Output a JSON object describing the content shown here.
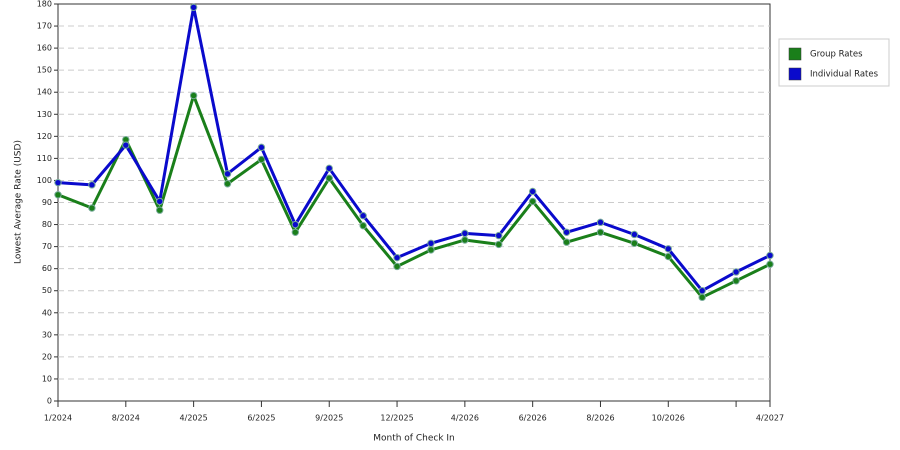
{
  "chart_data": {
    "type": "line",
    "x_label": "Month of Check In",
    "y_label": "Lowest Average Rate (USD)",
    "categories": [
      "1/2024",
      null,
      "8/2024",
      null,
      "4/2025",
      null,
      "6/2025",
      null,
      "9/2025",
      null,
      "12/2025",
      null,
      "4/2026",
      null,
      "6/2026",
      null,
      "8/2026",
      null,
      "10/2026",
      null,
      null,
      "4/2027"
    ],
    "series": [
      {
        "name": "Group Rates",
        "color": "#1a7f1a",
        "values": [
          93.5,
          87.5,
          118.5,
          86.5,
          138.5,
          98.5,
          109.5,
          76.5,
          101,
          79.5,
          61,
          68.5,
          73,
          71,
          90.5,
          72,
          76.5,
          71.5,
          65.5,
          47,
          54.5,
          62
        ]
      },
      {
        "name": "Individual Rates",
        "color": "#0a0acc",
        "values": [
          99,
          98,
          116,
          90.5,
          178.5,
          103,
          115,
          80,
          105.5,
          84,
          65,
          71.5,
          76,
          75,
          95,
          76.5,
          81,
          75.5,
          69,
          50,
          58.5,
          66
        ]
      }
    ],
    "ylim": [
      0,
      180
    ],
    "yticks": [
      0,
      10,
      20,
      30,
      40,
      50,
      60,
      70,
      80,
      90,
      100,
      110,
      120,
      130,
      140,
      150,
      160,
      170,
      180
    ],
    "grid": true,
    "legend": "right"
  }
}
